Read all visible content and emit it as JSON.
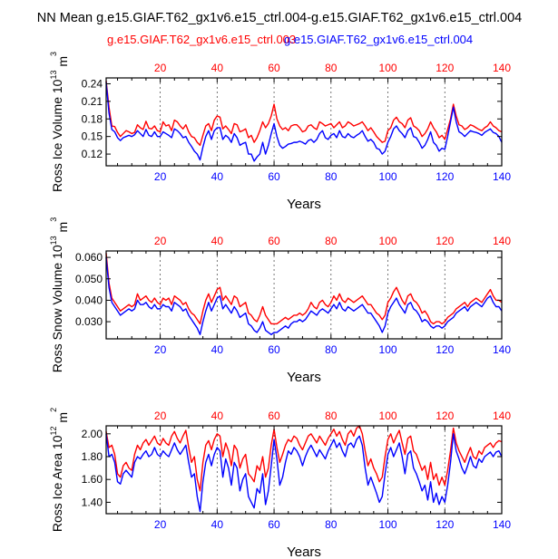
{
  "title": "NN Mean g.e15.GIAF.T62_gx1v6.e15_ctrl.004-g.e15.GIAF.T62_gx1v6.e15_ctrl.004",
  "legend": {
    "series_a": "g.e15.GIAF.T62_gx1v6.e15_ctrl.003",
    "series_b": "g.e15.GIAF.T62_gx1v6.e15_ctrl.004"
  },
  "colors": {
    "series_a": "#ff0000",
    "series_b": "#0000ff",
    "axis": "#000000",
    "grid": "#555555"
  },
  "chart_data": [
    {
      "type": "line",
      "ylabel": "Ross Ice Volume 10^13 m^3",
      "ylabel_base": "Ross Ice Volume 10",
      "ylabel_exp": "13",
      "ylabel_unit": "m",
      "ylabel_unit_exp": "3",
      "xlabel": "Years",
      "xlim": [
        1,
        140
      ],
      "ylim": [
        0.1,
        0.25
      ],
      "xticks": [
        20,
        40,
        60,
        80,
        100,
        120,
        140
      ],
      "yticks": [
        0.12,
        0.15,
        0.18,
        0.21,
        0.24
      ],
      "ytick_labels": [
        "0.12",
        "0.15",
        "0.18",
        "0.21",
        "0.24"
      ],
      "vgrid": [
        20,
        40,
        60,
        80,
        100,
        120
      ],
      "series": [
        {
          "name": "g.e15.GIAF.T62_gx1v6.e15_ctrl.003",
          "color": "#ff0000",
          "values": [
            0.245,
            0.2,
            0.168,
            0.167,
            0.157,
            0.15,
            0.155,
            0.16,
            0.158,
            0.155,
            0.157,
            0.17,
            0.165,
            0.162,
            0.176,
            0.164,
            0.163,
            0.168,
            0.16,
            0.158,
            0.175,
            0.168,
            0.17,
            0.16,
            0.178,
            0.175,
            0.168,
            0.163,
            0.17,
            0.158,
            0.15,
            0.148,
            0.14,
            0.135,
            0.152,
            0.168,
            0.172,
            0.16,
            0.178,
            0.185,
            0.183,
            0.163,
            0.168,
            0.162,
            0.155,
            0.172,
            0.17,
            0.158,
            0.16,
            0.163,
            0.148,
            0.152,
            0.14,
            0.148,
            0.16,
            0.175,
            0.165,
            0.172,
            0.185,
            0.205,
            0.18,
            0.168,
            0.162,
            0.165,
            0.16,
            0.168,
            0.17,
            0.17,
            0.165,
            0.158,
            0.16,
            0.168,
            0.17,
            0.165,
            0.162,
            0.175,
            0.172,
            0.168,
            0.17,
            0.172,
            0.165,
            0.17,
            0.175,
            0.165,
            0.168,
            0.175,
            0.172,
            0.168,
            0.17,
            0.172,
            0.175,
            0.168,
            0.16,
            0.165,
            0.158,
            0.15,
            0.145,
            0.14,
            0.142,
            0.16,
            0.165,
            0.178,
            0.183,
            0.175,
            0.172,
            0.165,
            0.178,
            0.182,
            0.168,
            0.165,
            0.16,
            0.15,
            0.155,
            0.163,
            0.175,
            0.165,
            0.158,
            0.148,
            0.152,
            0.145,
            0.162,
            0.18,
            0.205,
            0.185,
            0.17,
            0.168,
            0.162,
            0.165,
            0.17,
            0.168,
            0.165,
            0.162,
            0.16,
            0.165,
            0.168,
            0.175,
            0.168,
            0.165,
            0.16,
            0.158
          ]
        },
        {
          "name": "g.e15.GIAF.T62_gx1v6.e15_ctrl.004",
          "color": "#0000ff",
          "values": [
            0.243,
            0.19,
            0.162,
            0.158,
            0.148,
            0.143,
            0.148,
            0.15,
            0.152,
            0.15,
            0.153,
            0.16,
            0.155,
            0.15,
            0.162,
            0.152,
            0.15,
            0.158,
            0.15,
            0.15,
            0.158,
            0.155,
            0.152,
            0.148,
            0.163,
            0.16,
            0.155,
            0.148,
            0.15,
            0.14,
            0.133,
            0.125,
            0.12,
            0.11,
            0.132,
            0.15,
            0.16,
            0.145,
            0.16,
            0.165,
            0.165,
            0.145,
            0.152,
            0.148,
            0.14,
            0.155,
            0.148,
            0.135,
            0.138,
            0.14,
            0.12,
            0.12,
            0.108,
            0.115,
            0.12,
            0.14,
            0.12,
            0.135,
            0.155,
            0.172,
            0.15,
            0.135,
            0.13,
            0.133,
            0.137,
            0.138,
            0.14,
            0.14,
            0.142,
            0.14,
            0.137,
            0.143,
            0.145,
            0.14,
            0.145,
            0.155,
            0.16,
            0.148,
            0.145,
            0.152,
            0.155,
            0.148,
            0.16,
            0.15,
            0.148,
            0.155,
            0.15,
            0.148,
            0.152,
            0.155,
            0.16,
            0.15,
            0.142,
            0.145,
            0.14,
            0.13,
            0.128,
            0.12,
            0.125,
            0.14,
            0.15,
            0.163,
            0.168,
            0.16,
            0.155,
            0.148,
            0.16,
            0.165,
            0.15,
            0.148,
            0.14,
            0.13,
            0.135,
            0.145,
            0.158,
            0.14,
            0.135,
            0.125,
            0.13,
            0.128,
            0.15,
            0.175,
            0.2,
            0.175,
            0.158,
            0.155,
            0.15,
            0.155,
            0.16,
            0.158,
            0.157,
            0.155,
            0.152,
            0.157,
            0.16,
            0.163,
            0.157,
            0.155,
            0.15,
            0.14
          ]
        }
      ]
    },
    {
      "type": "line",
      "ylabel": "Ross Snow Volume 10^13 m^3",
      "ylabel_base": "Ross Snow Volume 10",
      "ylabel_exp": "13",
      "ylabel_unit": "m",
      "ylabel_unit_exp": "3",
      "xlabel": "Years",
      "xlim": [
        1,
        140
      ],
      "ylim": [
        0.022,
        0.063
      ],
      "xticks": [
        20,
        40,
        60,
        80,
        100,
        120,
        140
      ],
      "yticks": [
        0.03,
        0.04,
        0.05,
        0.06
      ],
      "ytick_labels": [
        "0.030",
        "0.040",
        "0.050",
        "0.060"
      ],
      "vgrid": [
        20,
        40,
        60,
        80,
        100,
        120
      ],
      "series": [
        {
          "name": "g.e15.GIAF.T62_gx1v6.e15_ctrl.003",
          "color": "#ff0000",
          "values": [
            0.062,
            0.048,
            0.041,
            0.039,
            0.037,
            0.035,
            0.036,
            0.037,
            0.038,
            0.037,
            0.038,
            0.043,
            0.04,
            0.041,
            0.042,
            0.04,
            0.039,
            0.041,
            0.039,
            0.038,
            0.041,
            0.04,
            0.041,
            0.038,
            0.042,
            0.041,
            0.04,
            0.038,
            0.039,
            0.036,
            0.034,
            0.033,
            0.031,
            0.029,
            0.035,
            0.04,
            0.043,
            0.039,
            0.042,
            0.045,
            0.046,
            0.04,
            0.042,
            0.04,
            0.038,
            0.042,
            0.041,
            0.037,
            0.038,
            0.039,
            0.034,
            0.033,
            0.031,
            0.03,
            0.033,
            0.037,
            0.033,
            0.031,
            0.029,
            0.029,
            0.029,
            0.03,
            0.031,
            0.032,
            0.031,
            0.032,
            0.033,
            0.033,
            0.034,
            0.033,
            0.034,
            0.036,
            0.039,
            0.037,
            0.036,
            0.039,
            0.04,
            0.038,
            0.037,
            0.039,
            0.042,
            0.04,
            0.043,
            0.04,
            0.039,
            0.041,
            0.04,
            0.039,
            0.04,
            0.041,
            0.042,
            0.04,
            0.038,
            0.038,
            0.036,
            0.034,
            0.033,
            0.031,
            0.033,
            0.039,
            0.041,
            0.044,
            0.046,
            0.043,
            0.04,
            0.038,
            0.042,
            0.043,
            0.04,
            0.039,
            0.037,
            0.034,
            0.035,
            0.033,
            0.03,
            0.029,
            0.03,
            0.03,
            0.029,
            0.03,
            0.032,
            0.033,
            0.034,
            0.036,
            0.037,
            0.038,
            0.039,
            0.037,
            0.039,
            0.04,
            0.041,
            0.04,
            0.039,
            0.041,
            0.043,
            0.045,
            0.042,
            0.04,
            0.04,
            0.039
          ]
        },
        {
          "name": "g.e15.GIAF.T62_gx1v6.e15_ctrl.004",
          "color": "#0000ff",
          "values": [
            0.06,
            0.046,
            0.039,
            0.037,
            0.035,
            0.033,
            0.034,
            0.035,
            0.036,
            0.035,
            0.036,
            0.04,
            0.038,
            0.038,
            0.039,
            0.037,
            0.036,
            0.038,
            0.036,
            0.036,
            0.038,
            0.037,
            0.037,
            0.035,
            0.039,
            0.038,
            0.037,
            0.035,
            0.036,
            0.033,
            0.031,
            0.029,
            0.027,
            0.024,
            0.03,
            0.035,
            0.039,
            0.035,
            0.038,
            0.041,
            0.042,
            0.036,
            0.038,
            0.036,
            0.034,
            0.037,
            0.035,
            0.032,
            0.033,
            0.034,
            0.029,
            0.028,
            0.026,
            0.025,
            0.027,
            0.03,
            0.026,
            0.025,
            0.024,
            0.025,
            0.025,
            0.026,
            0.027,
            0.028,
            0.027,
            0.029,
            0.03,
            0.03,
            0.031,
            0.03,
            0.031,
            0.033,
            0.035,
            0.034,
            0.033,
            0.035,
            0.036,
            0.035,
            0.034,
            0.036,
            0.038,
            0.036,
            0.039,
            0.036,
            0.035,
            0.037,
            0.036,
            0.035,
            0.036,
            0.037,
            0.038,
            0.036,
            0.034,
            0.034,
            0.032,
            0.03,
            0.028,
            0.025,
            0.028,
            0.034,
            0.037,
            0.039,
            0.041,
            0.038,
            0.036,
            0.034,
            0.038,
            0.039,
            0.036,
            0.035,
            0.033,
            0.03,
            0.031,
            0.03,
            0.028,
            0.027,
            0.028,
            0.028,
            0.027,
            0.028,
            0.03,
            0.031,
            0.032,
            0.034,
            0.035,
            0.036,
            0.037,
            0.035,
            0.037,
            0.038,
            0.039,
            0.038,
            0.037,
            0.039,
            0.041,
            0.042,
            0.039,
            0.037,
            0.037,
            0.035
          ]
        }
      ]
    },
    {
      "type": "line",
      "ylabel": "Ross Ice Area 10^12 m^2",
      "ylabel_base": "Ross Ice Area 10",
      "ylabel_exp": "12",
      "ylabel_unit": "m",
      "ylabel_unit_exp": "2",
      "xlabel": "Years",
      "xlim": [
        1,
        140
      ],
      "ylim": [
        1.3,
        2.07
      ],
      "xticks": [
        20,
        40,
        60,
        80,
        100,
        120,
        140
      ],
      "yticks": [
        1.4,
        1.6,
        1.8,
        2.0
      ],
      "ytick_labels": [
        "1.40",
        "1.60",
        "1.80",
        "2.00"
      ],
      "vgrid": [
        20,
        40,
        60,
        80,
        100,
        120
      ],
      "series": [
        {
          "name": "g.e15.GIAF.T62_gx1v6.e15_ctrl.003",
          "color": "#ff0000",
          "values": [
            2.02,
            1.88,
            1.9,
            1.82,
            1.65,
            1.62,
            1.72,
            1.75,
            1.7,
            1.68,
            1.82,
            1.9,
            1.86,
            1.92,
            1.95,
            1.9,
            1.94,
            1.98,
            1.92,
            1.9,
            1.96,
            1.92,
            1.9,
            1.98,
            2.02,
            1.96,
            1.92,
            1.98,
            2.03,
            1.88,
            1.75,
            1.8,
            1.6,
            1.5,
            1.75,
            1.9,
            1.94,
            1.86,
            1.95,
            2.0,
            1.98,
            1.8,
            1.92,
            1.85,
            1.72,
            1.9,
            1.86,
            1.7,
            1.78,
            1.82,
            1.65,
            1.62,
            1.58,
            1.72,
            1.68,
            1.8,
            1.62,
            1.7,
            1.9,
            2.04,
            1.88,
            1.75,
            1.82,
            1.9,
            1.95,
            1.93,
            1.98,
            1.96,
            1.9,
            1.86,
            1.92,
            1.98,
            2.0,
            1.96,
            1.92,
            1.98,
            1.94,
            1.9,
            1.96,
            2.0,
            2.04,
            1.98,
            2.02,
            1.95,
            1.9,
            2.0,
            2.03,
            1.98,
            2.05,
            2.07,
            2.0,
            1.85,
            1.72,
            1.78,
            1.7,
            1.65,
            1.58,
            1.62,
            1.8,
            1.95,
            2.0,
            1.92,
            1.98,
            2.03,
            1.92,
            1.82,
            1.96,
            1.98,
            1.85,
            1.82,
            1.75,
            1.68,
            1.72,
            1.6,
            1.75,
            1.6,
            1.65,
            1.55,
            1.62,
            1.55,
            1.68,
            1.85,
            2.05,
            1.92,
            1.85,
            1.8,
            1.75,
            1.82,
            1.88,
            1.8,
            1.78,
            1.85,
            1.82,
            1.88,
            1.9,
            1.92,
            1.88,
            1.92,
            1.94,
            1.93
          ]
        },
        {
          "name": "g.e15.GIAF.T62_gx1v6.e15_ctrl.004",
          "color": "#0000ff",
          "values": [
            2.0,
            1.8,
            1.82,
            1.75,
            1.58,
            1.56,
            1.65,
            1.68,
            1.65,
            1.62,
            1.75,
            1.8,
            1.78,
            1.82,
            1.85,
            1.8,
            1.82,
            1.88,
            1.82,
            1.8,
            1.85,
            1.82,
            1.8,
            1.86,
            1.92,
            1.86,
            1.82,
            1.86,
            1.9,
            1.75,
            1.62,
            1.65,
            1.45,
            1.32,
            1.58,
            1.75,
            1.82,
            1.72,
            1.82,
            1.88,
            1.85,
            1.62,
            1.78,
            1.7,
            1.55,
            1.75,
            1.7,
            1.5,
            1.6,
            1.65,
            1.45,
            1.4,
            1.35,
            1.52,
            1.48,
            1.65,
            1.38,
            1.5,
            1.72,
            1.95,
            1.78,
            1.55,
            1.62,
            1.75,
            1.85,
            1.82,
            1.88,
            1.85,
            1.8,
            1.72,
            1.8,
            1.86,
            1.9,
            1.85,
            1.8,
            1.86,
            1.82,
            1.78,
            1.85,
            1.9,
            1.95,
            1.88,
            1.92,
            1.85,
            1.8,
            1.9,
            1.92,
            1.88,
            1.95,
            1.98,
            1.9,
            1.7,
            1.55,
            1.62,
            1.55,
            1.48,
            1.4,
            1.45,
            1.65,
            1.82,
            1.88,
            1.8,
            1.86,
            1.92,
            1.8,
            1.65,
            1.82,
            1.85,
            1.7,
            1.65,
            1.58,
            1.5,
            1.55,
            1.42,
            1.58,
            1.4,
            1.48,
            1.38,
            1.45,
            1.4,
            1.55,
            1.75,
            2.0,
            1.85,
            1.78,
            1.7,
            1.65,
            1.72,
            1.8,
            1.72,
            1.7,
            1.78,
            1.75,
            1.8,
            1.82,
            1.84,
            1.8,
            1.84,
            1.85,
            1.8
          ]
        }
      ]
    }
  ]
}
